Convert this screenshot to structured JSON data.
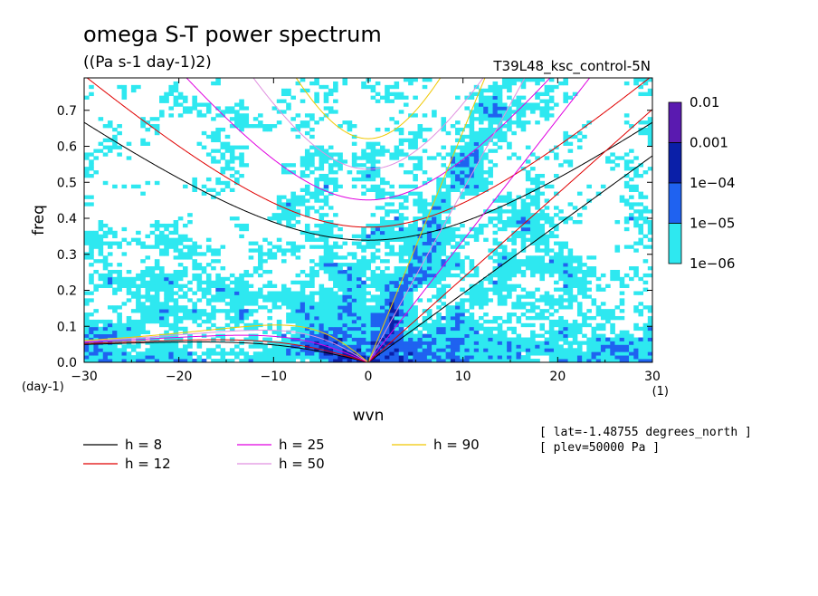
{
  "chart_data": {
    "type": "heatmap",
    "title": "omega S-T power spectrum",
    "subtitle": "((Pa s-1 day-1)2)",
    "run_name": "T39L48_ksc_control-5N",
    "xlabel": "wvn",
    "ylabel": "freq",
    "x_unit": "(1)",
    "y_unit": "(day-1)",
    "xlim": [
      -30,
      30
    ],
    "ylim": [
      0,
      0.79
    ],
    "x_ticks": [
      "-30",
      "-20",
      "-10",
      "0",
      "10",
      "20",
      "30"
    ],
    "x_tick_values": [
      -30,
      -20,
      -10,
      0,
      10,
      20,
      30
    ],
    "y_ticks": [
      "0.0",
      "0.1",
      "0.2",
      "0.3",
      "0.4",
      "0.5",
      "0.6",
      "0.7"
    ],
    "y_tick_values": [
      0,
      0.1,
      0.2,
      0.3,
      0.4,
      0.5,
      0.6,
      0.7
    ],
    "colorbar": {
      "levels": [
        "0.01",
        "0.001",
        "1e-04",
        "1e-05",
        "1e-06"
      ],
      "colors": [
        "#5a1ab0",
        "#0a1fa8",
        "#1f62f0",
        "#2ee8f0"
      ],
      "color_ranges": [
        "1e-03 to 1e-02",
        "1e-04 to 1e-03",
        "1e-05 to 1e-04",
        "1e-06 to 1e-05"
      ]
    },
    "dispersion_curves": [
      {
        "label": "h =  8",
        "h": 8,
        "color": "#000000"
      },
      {
        "label": "h = 12",
        "h": 12,
        "color": "#e00000"
      },
      {
        "label": "h = 25",
        "h": 25,
        "color": "#e000e0"
      },
      {
        "label": "h = 50",
        "h": 50,
        "color": "#e090e0"
      },
      {
        "label": "h = 90",
        "h": 90,
        "color": "#f0c800"
      }
    ],
    "info": [
      "[ lat=-1.48755 degrees_north ]",
      "[ plev=50000 Pa ]"
    ]
  }
}
